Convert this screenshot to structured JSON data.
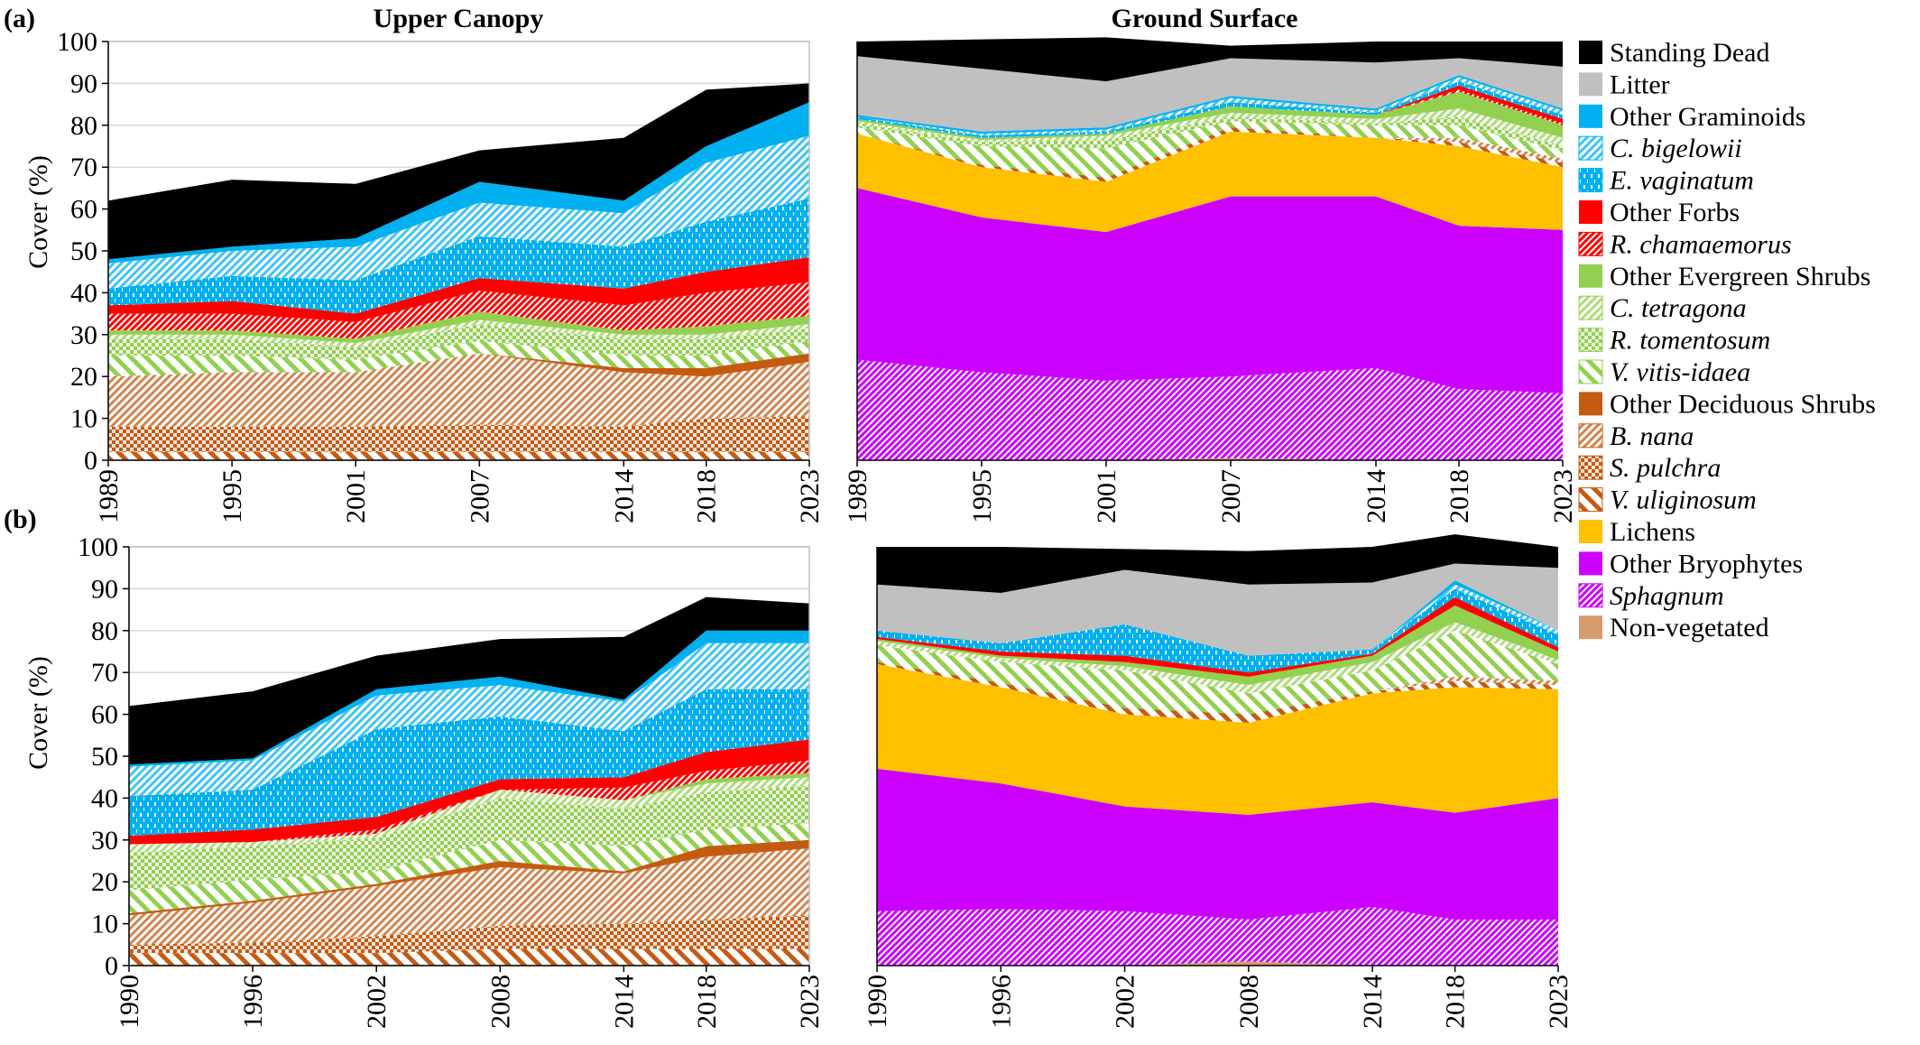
{
  "panel_labels": [
    "(a)",
    "(b)"
  ],
  "panel_titles": {
    "upper": "Upper Canopy",
    "ground": "Ground Surface"
  },
  "ylabel": "Cover (%)",
  "legend": [
    {
      "label": "Standing Dead",
      "italic": false,
      "color": "#000000",
      "pattern": "solid"
    },
    {
      "label": "Litter",
      "italic": false,
      "color": "#c0c0c0",
      "pattern": "solid"
    },
    {
      "label": "Other Graminoids",
      "italic": false,
      "color": "#00b0f0",
      "pattern": "solid"
    },
    {
      "label": "C. bigelowii",
      "italic": true,
      "color": "#00b0f0",
      "pattern": "diag-light"
    },
    {
      "label": "E. vaginatum",
      "italic": true,
      "color": "#00b0f0",
      "pattern": "vdash"
    },
    {
      "label": "Other Forbs",
      "italic": false,
      "color": "#ff0000",
      "pattern": "solid"
    },
    {
      "label": "R. chamaemorus",
      "italic": true,
      "color": "#ff0000",
      "pattern": "diag-dense"
    },
    {
      "label": "Other Evergreen Shrubs",
      "italic": false,
      "color": "#92d050",
      "pattern": "solid"
    },
    {
      "label": "C. tetragona",
      "italic": true,
      "color": "#92d050",
      "pattern": "diag-light"
    },
    {
      "label": "R. tomentosum",
      "italic": true,
      "color": "#92d050",
      "pattern": "checker"
    },
    {
      "label": "V. vitis-idaea",
      "italic": true,
      "color": "#92d050",
      "pattern": "diag-wide"
    },
    {
      "label": "Other Deciduous Shrubs",
      "italic": false,
      "color": "#c55a11",
      "pattern": "solid"
    },
    {
      "label": "B. nana",
      "italic": true,
      "color": "#c55a11",
      "pattern": "diag-light"
    },
    {
      "label": "S. pulchra",
      "italic": true,
      "color": "#c55a11",
      "pattern": "checker"
    },
    {
      "label": "V. uliginosum",
      "italic": true,
      "color": "#c55a11",
      "pattern": "diag-wide"
    },
    {
      "label": "Lichens",
      "italic": false,
      "color": "#ffc000",
      "pattern": "solid"
    },
    {
      "label": "Other Bryophytes",
      "italic": false,
      "color": "#cc00ff",
      "pattern": "solid"
    },
    {
      "label": "Sphagnum",
      "italic": true,
      "color": "#cc00ff",
      "pattern": "diag-dense"
    },
    {
      "label": "Non-vegetated",
      "italic": false,
      "color": "#d69b6f",
      "pattern": "solid"
    }
  ],
  "chart_data": [
    {
      "type": "area",
      "stacked": true,
      "panel": "(a)",
      "title": "Upper Canopy",
      "ylabel": "Cover (%)",
      "ylim": [
        0,
        100
      ],
      "yticks": [
        0,
        10,
        20,
        30,
        40,
        50,
        60,
        70,
        80,
        90,
        100
      ],
      "x": [
        1989,
        1995,
        2001,
        2007,
        2014,
        2018,
        2023
      ],
      "grid": true,
      "series": [
        {
          "name": "Non-vegetated",
          "values": [
            0,
            0,
            0,
            0,
            0,
            0,
            0
          ]
        },
        {
          "name": "V. uliginosum",
          "values": [
            2,
            2,
            2,
            2,
            2,
            2,
            2
          ]
        },
        {
          "name": "S. pulchra",
          "values": [
            6,
            6,
            6,
            6.5,
            6,
            8,
            8.5
          ]
        },
        {
          "name": "B. nana",
          "values": [
            12,
            13,
            13,
            17,
            13,
            10,
            13
          ]
        },
        {
          "name": "Other Deciduous Shrubs",
          "values": [
            0,
            0,
            0,
            0,
            1,
            2,
            2
          ]
        },
        {
          "name": "V. vitis-idaea",
          "values": [
            5,
            4,
            3,
            3,
            3,
            3,
            3
          ]
        },
        {
          "name": "R. tomentosum",
          "values": [
            4,
            4,
            3,
            4,
            4,
            4,
            3
          ]
        },
        {
          "name": "C. tetragona",
          "values": [
            1,
            1,
            1,
            1,
            1,
            1,
            1
          ]
        },
        {
          "name": "Other Evergreen Shrubs",
          "values": [
            1,
            1,
            1,
            2,
            1,
            2,
            2
          ]
        },
        {
          "name": "R. chamaemorus",
          "values": [
            4,
            4,
            4,
            5,
            6,
            8,
            8
          ]
        },
        {
          "name": "Other Forbs",
          "values": [
            2,
            3,
            2,
            3,
            4,
            5,
            6
          ]
        },
        {
          "name": "E. vaginatum",
          "values": [
            4,
            6,
            8,
            10,
            10,
            12,
            14
          ]
        },
        {
          "name": "C. bigelowii",
          "values": [
            6,
            6,
            8,
            8,
            8,
            14,
            15
          ]
        },
        {
          "name": "Other Graminoids",
          "values": [
            1,
            1,
            2,
            5,
            3,
            4,
            8
          ]
        },
        {
          "name": "Litter",
          "values": [
            0,
            0,
            0,
            0,
            0,
            0,
            0
          ]
        },
        {
          "name": "Standing Dead",
          "values": [
            14,
            16,
            13,
            7.5,
            15,
            13.5,
            4.5
          ]
        }
      ]
    },
    {
      "type": "area",
      "stacked": true,
      "panel": "(a)",
      "title": "Ground Surface",
      "ylim": [
        0,
        100
      ],
      "x": [
        1989,
        1995,
        2001,
        2007,
        2014,
        2018,
        2023
      ],
      "grid": false,
      "series": [
        {
          "name": "Non-vegetated",
          "values": [
            0,
            0,
            0,
            0.5,
            0,
            0,
            0
          ]
        },
        {
          "name": "Sphagnum",
          "values": [
            24,
            21,
            19,
            19.5,
            22,
            17,
            16
          ]
        },
        {
          "name": "Other Bryophytes",
          "values": [
            41,
            37,
            35.5,
            43,
            41,
            39,
            39
          ]
        },
        {
          "name": "Lichens",
          "values": [
            13,
            12,
            12,
            15.5,
            14,
            19,
            15
          ]
        },
        {
          "name": "V. uliginosum",
          "values": [
            0,
            0.5,
            1,
            1,
            0,
            1,
            1
          ]
        },
        {
          "name": "S. pulchra",
          "values": [
            0,
            0,
            0,
            0,
            0,
            0,
            0
          ]
        },
        {
          "name": "B. nana",
          "values": [
            0,
            0,
            0,
            0,
            0,
            1,
            1
          ]
        },
        {
          "name": "Other Deciduous Shrubs",
          "values": [
            0,
            0,
            0,
            0,
            0,
            0,
            0
          ]
        },
        {
          "name": "V. vitis-idaea",
          "values": [
            1.5,
            4.5,
            7,
            1.5,
            3,
            3,
            2
          ]
        },
        {
          "name": "R. tomentosum",
          "values": [
            1,
            1,
            2,
            1,
            0.5,
            2,
            1
          ]
        },
        {
          "name": "C. tetragona",
          "values": [
            0.5,
            0.5,
            1,
            1,
            1,
            2,
            2
          ]
        },
        {
          "name": "Other Evergreen Shrubs",
          "values": [
            0.5,
            0.5,
            0.5,
            1.5,
            1,
            4,
            3
          ]
        },
        {
          "name": "R. chamaemorus",
          "values": [
            0,
            0,
            0,
            0,
            0,
            0.5,
            0.5
          ]
        },
        {
          "name": "Other Forbs",
          "values": [
            0,
            0,
            0,
            0,
            0,
            1,
            1
          ]
        },
        {
          "name": "E. vaginatum",
          "values": [
            0.5,
            0.5,
            0.5,
            1,
            0.5,
            1,
            1
          ]
        },
        {
          "name": "C. bigelowii",
          "values": [
            0,
            0.5,
            0.5,
            1,
            0.5,
            1,
            1
          ]
        },
        {
          "name": "Other Graminoids",
          "values": [
            0.5,
            0.5,
            0.5,
            0.5,
            0.5,
            0.5,
            0.5
          ]
        },
        {
          "name": "Litter",
          "values": [
            14,
            15,
            11,
            9,
            11,
            4,
            10
          ]
        },
        {
          "name": "Standing Dead",
          "values": [
            3.5,
            7,
            10.5,
            3,
            5,
            4,
            6
          ]
        }
      ]
    },
    {
      "type": "area",
      "stacked": true,
      "panel": "(b)",
      "title": "Upper Canopy",
      "ylabel": "Cover (%)",
      "ylim": [
        0,
        100
      ],
      "yticks": [
        0,
        10,
        20,
        30,
        40,
        50,
        60,
        70,
        80,
        90,
        100
      ],
      "x": [
        1990,
        1996,
        2002,
        2008,
        2014,
        2018,
        2023
      ],
      "grid": true,
      "series": [
        {
          "name": "Non-vegetated",
          "values": [
            0,
            0,
            0,
            0,
            0,
            0,
            0
          ]
        },
        {
          "name": "V. uliginosum",
          "values": [
            3,
            3,
            3,
            4,
            4,
            4,
            4
          ]
        },
        {
          "name": "S. pulchra",
          "values": [
            2,
            2.5,
            4,
            5.5,
            6,
            7,
            8
          ]
        },
        {
          "name": "B. nana",
          "values": [
            7,
            9.5,
            12,
            14,
            12,
            15,
            16
          ]
        },
        {
          "name": "Other Deciduous Shrubs",
          "values": [
            0.5,
            0.5,
            0.5,
            1.5,
            0.5,
            2.5,
            2
          ]
        },
        {
          "name": "V. vitis-idaea",
          "values": [
            5.5,
            5,
            3,
            5,
            6,
            4,
            4
          ]
        },
        {
          "name": "R. tomentosum",
          "values": [
            9,
            8,
            8,
            10,
            9,
            9,
            9
          ]
        },
        {
          "name": "C. tetragona",
          "values": [
            2,
            1,
            1,
            2,
            2,
            2,
            2
          ]
        },
        {
          "name": "Other Evergreen Shrubs",
          "values": [
            0,
            0,
            0,
            0,
            0,
            1,
            1
          ]
        },
        {
          "name": "R. chamaemorus",
          "values": [
            0,
            0,
            1,
            0,
            3,
            2,
            3
          ]
        },
        {
          "name": "Other Forbs",
          "values": [
            2,
            3,
            3,
            2.5,
            2.5,
            4.5,
            5
          ]
        },
        {
          "name": "E. vaginatum",
          "values": [
            9.5,
            9.5,
            21,
            15,
            11,
            15,
            12
          ]
        },
        {
          "name": "C. bigelowii",
          "values": [
            7,
            7,
            8,
            7.5,
            7,
            11,
            11
          ]
        },
        {
          "name": "Other Graminoids",
          "values": [
            0.5,
            0.5,
            1.5,
            2,
            0.5,
            3,
            3
          ]
        },
        {
          "name": "Litter",
          "values": [
            0,
            0,
            0,
            0,
            0,
            0,
            0
          ]
        },
        {
          "name": "Standing Dead",
          "values": [
            14,
            16,
            8,
            9,
            15,
            8,
            6.5
          ]
        }
      ]
    },
    {
      "type": "area",
      "stacked": true,
      "panel": "(b)",
      "title": "Ground Surface",
      "ylim": [
        0,
        100
      ],
      "x": [
        1990,
        1996,
        2002,
        2008,
        2014,
        2018,
        2023
      ],
      "grid": false,
      "series": [
        {
          "name": "Non-vegetated",
          "values": [
            0,
            0,
            0,
            1,
            0,
            0,
            0
          ]
        },
        {
          "name": "Sphagnum",
          "values": [
            13,
            13.5,
            13,
            10,
            14,
            11,
            11
          ]
        },
        {
          "name": "Other Bryophytes",
          "values": [
            34,
            30,
            25,
            25,
            25,
            25.5,
            29
          ]
        },
        {
          "name": "Lichens",
          "values": [
            25,
            23,
            22,
            22,
            26,
            30,
            26
          ]
        },
        {
          "name": "V. uliginosum",
          "values": [
            0.5,
            1,
            1.5,
            2,
            0.5,
            1.5,
            1
          ]
        },
        {
          "name": "S. pulchra",
          "values": [
            0,
            0,
            0,
            0,
            0,
            0,
            0
          ]
        },
        {
          "name": "B. nana",
          "values": [
            0,
            0,
            0,
            0,
            0,
            1,
            1
          ]
        },
        {
          "name": "Other Deciduous Shrubs",
          "values": [
            0,
            0,
            0,
            0,
            0,
            0,
            0
          ]
        },
        {
          "name": "V. vitis-idaea",
          "values": [
            4,
            5,
            9,
            5,
            5,
            11,
            4
          ]
        },
        {
          "name": "R. tomentosum",
          "values": [
            0,
            0,
            0,
            0,
            0,
            0,
            0
          ]
        },
        {
          "name": "C. tetragona",
          "values": [
            1,
            1,
            1,
            2,
            2,
            2,
            1
          ]
        },
        {
          "name": "Other Evergreen Shrubs",
          "values": [
            0.5,
            0.5,
            1,
            2,
            1.5,
            4,
            2
          ]
        },
        {
          "name": "R. chamaemorus",
          "values": [
            0,
            0,
            0,
            0,
            0,
            0,
            0
          ]
        },
        {
          "name": "Other Forbs",
          "values": [
            0.5,
            1,
            1.5,
            1,
            0.5,
            2,
            1
          ]
        },
        {
          "name": "E. vaginatum",
          "values": [
            1.5,
            2,
            7.5,
            4,
            1,
            2,
            3
          ]
        },
        {
          "name": "C. bigelowii",
          "values": [
            0,
            0,
            0,
            0,
            0,
            1,
            1
          ]
        },
        {
          "name": "Other Graminoids",
          "values": [
            0,
            0,
            0,
            0,
            0,
            1,
            0
          ]
        },
        {
          "name": "Litter",
          "values": [
            11,
            12,
            13,
            17,
            16,
            4,
            15
          ]
        },
        {
          "name": "Standing Dead",
          "values": [
            9,
            11,
            5,
            8,
            8.5,
            7,
            5
          ]
        }
      ]
    }
  ]
}
